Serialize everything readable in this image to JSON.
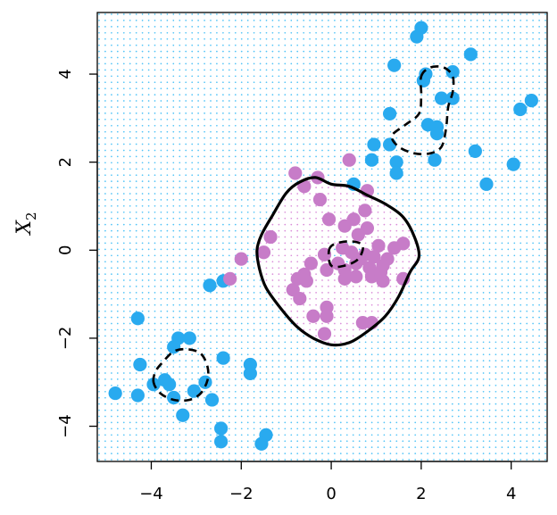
{
  "chart_data": {
    "type": "scatter",
    "title": "",
    "xlabel": "",
    "ylabel": "X",
    "ylabel_subscript": "2",
    "xlim": [
      -5.2,
      4.8
    ],
    "ylim": [
      -4.8,
      5.4
    ],
    "xticks": [
      "−4",
      "−2",
      "0",
      "2",
      "4"
    ],
    "xtick_values": [
      -4,
      -2,
      0,
      2,
      4
    ],
    "yticks": [
      "−4",
      "−2",
      "0",
      "2",
      "4"
    ],
    "ytick_values": [
      -4,
      -2,
      0,
      2,
      4
    ],
    "grid": "dotted-background",
    "colors": {
      "blue": "#29aaef",
      "purple": "#c77cc8",
      "grid_blue": "#4fc3f7",
      "grid_purple": "#d98cd9",
      "boundary": "#000000"
    },
    "series": [
      {
        "color": "blue",
        "points": [
          [
            2.0,
            5.05
          ],
          [
            1.9,
            4.85
          ],
          [
            3.1,
            4.45
          ],
          [
            1.4,
            4.2
          ],
          [
            2.1,
            4.0
          ],
          [
            2.7,
            4.05
          ],
          [
            2.05,
            3.85
          ],
          [
            2.45,
            3.45
          ],
          [
            2.7,
            3.45
          ],
          [
            1.3,
            3.1
          ],
          [
            2.15,
            2.85
          ],
          [
            2.35,
            2.8
          ],
          [
            2.35,
            2.65
          ],
          [
            0.95,
            2.4
          ],
          [
            1.3,
            2.4
          ],
          [
            3.2,
            2.25
          ],
          [
            0.9,
            2.05
          ],
          [
            1.45,
            2.0
          ],
          [
            2.3,
            2.05
          ],
          [
            4.05,
            1.95
          ],
          [
            1.45,
            1.75
          ],
          [
            0.5,
            1.5
          ],
          [
            3.45,
            1.5
          ],
          [
            4.2,
            3.2
          ],
          [
            4.45,
            3.4
          ],
          [
            -2.4,
            -0.7
          ],
          [
            -2.7,
            -0.8
          ],
          [
            -4.3,
            -1.55
          ],
          [
            -3.4,
            -2.0
          ],
          [
            -3.15,
            -2.0
          ],
          [
            -3.5,
            -2.2
          ],
          [
            -2.4,
            -2.45
          ],
          [
            -4.25,
            -2.6
          ],
          [
            -1.8,
            -2.6
          ],
          [
            -1.8,
            -2.8
          ],
          [
            -3.7,
            -2.95
          ],
          [
            -3.95,
            -3.05
          ],
          [
            -3.6,
            -3.05
          ],
          [
            -2.8,
            -3.0
          ],
          [
            -3.05,
            -3.2
          ],
          [
            -4.8,
            -3.25
          ],
          [
            -4.3,
            -3.3
          ],
          [
            -3.5,
            -3.35
          ],
          [
            -2.65,
            -3.4
          ],
          [
            -3.3,
            -3.75
          ],
          [
            -2.45,
            -4.05
          ],
          [
            -1.45,
            -4.2
          ],
          [
            -2.45,
            -4.35
          ],
          [
            -1.55,
            -4.4
          ]
        ]
      },
      {
        "color": "purple",
        "points": [
          [
            -0.8,
            1.75
          ],
          [
            -0.3,
            1.65
          ],
          [
            0.4,
            2.05
          ],
          [
            -0.6,
            1.45
          ],
          [
            0.8,
            1.35
          ],
          [
            -0.25,
            1.15
          ],
          [
            0.75,
            0.9
          ],
          [
            0.5,
            0.7
          ],
          [
            -0.05,
            0.7
          ],
          [
            0.3,
            0.55
          ],
          [
            0.8,
            0.5
          ],
          [
            0.6,
            0.35
          ],
          [
            -1.35,
            0.3
          ],
          [
            1.6,
            0.15
          ],
          [
            1.4,
            0.05
          ],
          [
            1.05,
            0.1
          ],
          [
            0.25,
            0.05
          ],
          [
            0.45,
            -0.05
          ],
          [
            -1.5,
            -0.05
          ],
          [
            0.75,
            -0.1
          ],
          [
            -0.15,
            -0.1
          ],
          [
            0.65,
            -0.2
          ],
          [
            0.95,
            -0.15
          ],
          [
            1.25,
            -0.2
          ],
          [
            -0.45,
            -0.3
          ],
          [
            0.15,
            -0.3
          ],
          [
            0.55,
            -0.3
          ],
          [
            1.15,
            -0.35
          ],
          [
            -0.1,
            -0.45
          ],
          [
            0.3,
            -0.45
          ],
          [
            0.85,
            -0.4
          ],
          [
            -0.6,
            -0.55
          ],
          [
            0.55,
            -0.6
          ],
          [
            0.9,
            -0.6
          ],
          [
            1.1,
            -0.5
          ],
          [
            -0.75,
            -0.65
          ],
          [
            1.6,
            -0.65
          ],
          [
            -0.55,
            -0.7
          ],
          [
            0.3,
            -0.65
          ],
          [
            1.15,
            -0.7
          ],
          [
            -0.85,
            -0.9
          ],
          [
            -0.7,
            -1.1
          ],
          [
            -2.0,
            -0.2
          ],
          [
            -2.25,
            -0.65
          ],
          [
            -0.1,
            -1.3
          ],
          [
            -0.4,
            -1.5
          ],
          [
            -0.1,
            -1.5
          ],
          [
            0.7,
            -1.65
          ],
          [
            0.9,
            -1.65
          ],
          [
            -0.15,
            -1.9
          ]
        ]
      }
    ],
    "boundaries": [
      {
        "style": "solid",
        "points": [
          [
            0.0,
            1.5
          ],
          [
            -0.35,
            1.65
          ],
          [
            -0.7,
            1.55
          ],
          [
            -1.0,
            1.3
          ],
          [
            -1.3,
            0.8
          ],
          [
            -1.55,
            0.35
          ],
          [
            -1.65,
            0.0
          ],
          [
            -1.6,
            -0.4
          ],
          [
            -1.45,
            -0.85
          ],
          [
            -1.1,
            -1.35
          ],
          [
            -0.75,
            -1.75
          ],
          [
            -0.4,
            -2.0
          ],
          [
            0.0,
            -2.15
          ],
          [
            0.4,
            -2.1
          ],
          [
            0.8,
            -1.85
          ],
          [
            1.2,
            -1.5
          ],
          [
            1.5,
            -1.05
          ],
          [
            1.75,
            -0.5
          ],
          [
            1.95,
            -0.15
          ],
          [
            1.85,
            0.3
          ],
          [
            1.6,
            0.75
          ],
          [
            1.2,
            1.05
          ],
          [
            0.8,
            1.25
          ],
          [
            0.4,
            1.45
          ],
          [
            0.0,
            1.5
          ]
        ]
      },
      {
        "style": "dashed",
        "points": [
          [
            -0.05,
            0.0
          ],
          [
            0.1,
            0.15
          ],
          [
            0.45,
            0.2
          ],
          [
            0.7,
            0.1
          ],
          [
            0.6,
            -0.2
          ],
          [
            0.3,
            -0.35
          ],
          [
            0.0,
            -0.35
          ],
          [
            -0.05,
            0.0
          ]
        ]
      },
      {
        "style": "dashed",
        "points": [
          [
            2.0,
            3.95
          ],
          [
            2.2,
            4.15
          ],
          [
            2.5,
            4.15
          ],
          [
            2.7,
            3.95
          ],
          [
            2.7,
            3.6
          ],
          [
            2.6,
            3.25
          ],
          [
            2.55,
            2.75
          ],
          [
            2.45,
            2.35
          ],
          [
            2.2,
            2.2
          ],
          [
            1.85,
            2.2
          ],
          [
            1.5,
            2.35
          ],
          [
            1.35,
            2.6
          ],
          [
            1.65,
            2.85
          ],
          [
            1.95,
            3.1
          ],
          [
            2.0,
            3.5
          ],
          [
            2.0,
            3.95
          ]
        ]
      },
      {
        "style": "dashed",
        "points": [
          [
            -3.95,
            -3.0
          ],
          [
            -3.9,
            -2.75
          ],
          [
            -3.75,
            -2.55
          ],
          [
            -3.5,
            -2.3
          ],
          [
            -3.2,
            -2.25
          ],
          [
            -2.9,
            -2.35
          ],
          [
            -2.75,
            -2.65
          ],
          [
            -2.75,
            -2.95
          ],
          [
            -2.9,
            -3.25
          ],
          [
            -3.15,
            -3.4
          ],
          [
            -3.5,
            -3.4
          ],
          [
            -3.8,
            -3.25
          ],
          [
            -3.95,
            -3.0
          ]
        ]
      }
    ]
  }
}
